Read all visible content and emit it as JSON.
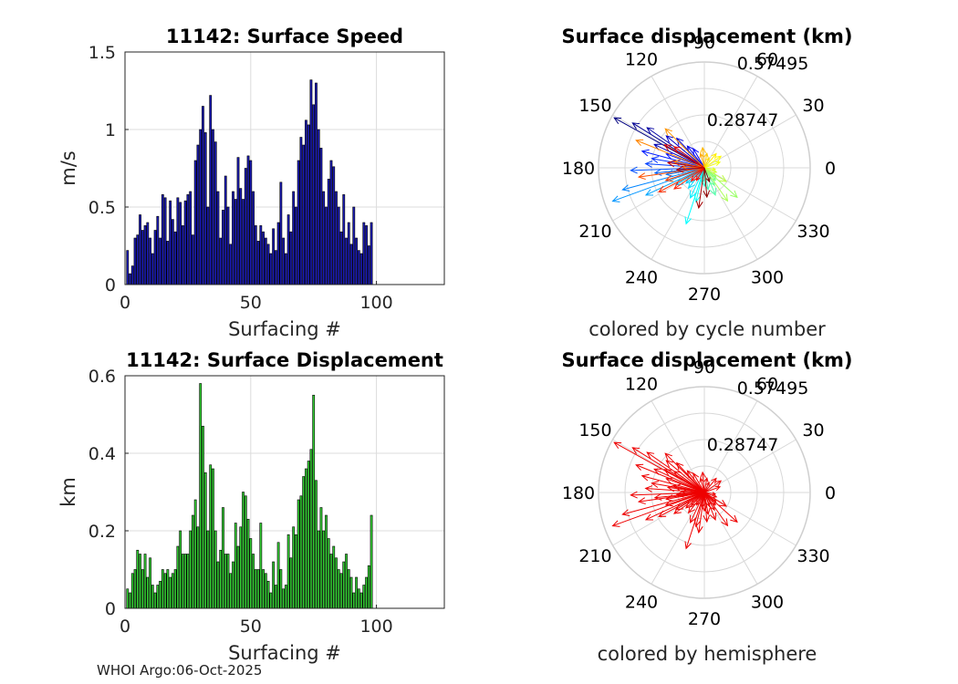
{
  "footer": "WHOI Argo:06-Oct-2025",
  "chart_data": [
    {
      "type": "bar",
      "title": "11142: Surface Speed",
      "xlabel": "Surfacing #",
      "ylabel": "m/s",
      "xlim": [
        0,
        127
      ],
      "ylim": [
        0,
        1.5
      ],
      "xticks": [
        "0",
        "50",
        "100"
      ],
      "yticks": [
        "0",
        "0.5",
        "1",
        "1.5"
      ],
      "bar_color": "#1a1ab4",
      "grid": true,
      "x": [
        1,
        2,
        3,
        4,
        5,
        6,
        7,
        8,
        9,
        10,
        11,
        12,
        13,
        14,
        15,
        16,
        17,
        18,
        19,
        20,
        21,
        22,
        23,
        24,
        25,
        26,
        27,
        28,
        29,
        30,
        31,
        32,
        33,
        34,
        35,
        36,
        37,
        38,
        39,
        40,
        41,
        42,
        43,
        44,
        45,
        46,
        47,
        48,
        49,
        50,
        51,
        52,
        53,
        54,
        55,
        56,
        57,
        58,
        59,
        60,
        61,
        62,
        63,
        64,
        65,
        66,
        67,
        68,
        69,
        70,
        71,
        72,
        73,
        74,
        75,
        76,
        77,
        78,
        79,
        80,
        81,
        82,
        83,
        84,
        85,
        86,
        87,
        88,
        89,
        90,
        91,
        92,
        93,
        94,
        95,
        96,
        97,
        98
      ],
      "values": [
        0.22,
        0.07,
        0.12,
        0.3,
        0.32,
        0.45,
        0.35,
        0.38,
        0.4,
        0.3,
        0.2,
        0.35,
        0.44,
        0.3,
        0.58,
        0.56,
        0.28,
        0.54,
        0.42,
        0.34,
        0.56,
        0.53,
        0.38,
        0.54,
        0.58,
        0.6,
        0.32,
        0.8,
        0.9,
        1.0,
        1.15,
        0.98,
        0.5,
        1.22,
        1.0,
        0.92,
        0.6,
        0.3,
        0.48,
        0.7,
        0.5,
        0.26,
        0.6,
        0.55,
        0.82,
        0.62,
        0.55,
        0.75,
        0.83,
        0.8,
        0.6,
        0.38,
        0.28,
        0.38,
        0.34,
        0.3,
        0.26,
        0.2,
        0.36,
        0.22,
        0.4,
        0.66,
        0.3,
        0.2,
        0.45,
        0.34,
        0.6,
        0.5,
        0.8,
        0.95,
        0.9,
        1.06,
        1.03,
        1.32,
        1.16,
        1.3,
        1.0,
        0.88,
        0.6,
        0.5,
        0.68,
        0.8,
        0.76,
        0.6,
        0.5,
        0.34,
        0.58,
        0.3,
        0.4,
        0.26,
        0.5,
        0.3,
        0.22,
        0.2,
        0.4,
        0.38,
        0.25,
        0.4
      ]
    },
    {
      "type": "bar",
      "title": "11142: Surface Displacement",
      "xlabel": "Surfacing #",
      "ylabel": "km",
      "xlim": [
        0,
        127
      ],
      "ylim": [
        0,
        0.6
      ],
      "xticks": [
        "0",
        "50",
        "100"
      ],
      "yticks": [
        "0",
        "0.2",
        "0.4",
        "0.6"
      ],
      "bar_color": "#33cc33",
      "grid": true,
      "x": [
        1,
        2,
        3,
        4,
        5,
        6,
        7,
        8,
        9,
        10,
        11,
        12,
        13,
        14,
        15,
        16,
        17,
        18,
        19,
        20,
        21,
        22,
        23,
        24,
        25,
        26,
        27,
        28,
        29,
        30,
        31,
        32,
        33,
        34,
        35,
        36,
        37,
        38,
        39,
        40,
        41,
        42,
        43,
        44,
        45,
        46,
        47,
        48,
        49,
        50,
        51,
        52,
        53,
        54,
        55,
        56,
        57,
        58,
        59,
        60,
        61,
        62,
        63,
        64,
        65,
        66,
        67,
        68,
        69,
        70,
        71,
        72,
        73,
        74,
        75,
        76,
        77,
        78,
        79,
        80,
        81,
        82,
        83,
        84,
        85,
        86,
        87,
        88,
        89,
        90,
        91,
        92,
        93,
        94,
        95,
        96,
        97,
        98
      ],
      "values": [
        0.05,
        0.04,
        0.09,
        0.1,
        0.15,
        0.14,
        0.1,
        0.14,
        0.08,
        0.13,
        0.06,
        0.04,
        0.06,
        0.07,
        0.1,
        0.09,
        0.1,
        0.08,
        0.09,
        0.1,
        0.16,
        0.2,
        0.14,
        0.14,
        0.14,
        0.2,
        0.24,
        0.28,
        0.21,
        0.58,
        0.47,
        0.35,
        0.2,
        0.37,
        0.36,
        0.2,
        0.12,
        0.15,
        0.26,
        0.14,
        0.14,
        0.09,
        0.12,
        0.22,
        0.16,
        0.21,
        0.3,
        0.29,
        0.23,
        0.18,
        0.14,
        0.1,
        0.1,
        0.22,
        0.1,
        0.09,
        0.07,
        0.04,
        0.12,
        0.06,
        0.17,
        0.1,
        0.05,
        0.06,
        0.19,
        0.13,
        0.21,
        0.19,
        0.28,
        0.29,
        0.34,
        0.36,
        0.38,
        0.41,
        0.55,
        0.33,
        0.2,
        0.26,
        0.2,
        0.24,
        0.18,
        0.14,
        0.16,
        0.13,
        0.1,
        0.09,
        0.12,
        0.14,
        0.1,
        0.08,
        0.04,
        0.08,
        0.05,
        0.04,
        0.06,
        0.08,
        0.11,
        0.24
      ]
    },
    {
      "type": "polar-compass",
      "title": "Surface displacement (km)",
      "caption": "colored by cycle number",
      "rmax": 0.57495,
      "r_ticks": [
        "0.28747",
        "0.57495"
      ],
      "angle_ticks": [
        "90",
        "60",
        "30",
        "0",
        "330",
        "300",
        "270",
        "240",
        "210",
        "180",
        "150",
        "120"
      ],
      "color_mode": "cycle",
      "colormap": "jet",
      "vectors": [
        {
          "angle": 151,
          "r": 0.56
        },
        {
          "angle": 148,
          "r": 0.46
        },
        {
          "angle": 145,
          "r": 0.38
        },
        {
          "angle": 155,
          "r": 0.3
        },
        {
          "angle": 140,
          "r": 0.27
        },
        {
          "angle": 133,
          "r": 0.22
        },
        {
          "angle": 128,
          "r": 0.15
        },
        {
          "angle": 120,
          "r": 0.12
        },
        {
          "angle": 160,
          "r": 0.22
        },
        {
          "angle": 165,
          "r": 0.35
        },
        {
          "angle": 170,
          "r": 0.29
        },
        {
          "angle": 176,
          "r": 0.32
        },
        {
          "angle": 182,
          "r": 0.4
        },
        {
          "angle": 186,
          "r": 0.27
        },
        {
          "angle": 190,
          "r": 0.21
        },
        {
          "angle": 195,
          "r": 0.46
        },
        {
          "angle": 200,
          "r": 0.53
        },
        {
          "angle": 205,
          "r": 0.35
        },
        {
          "angle": 211,
          "r": 0.18
        },
        {
          "angle": 220,
          "r": 0.13
        },
        {
          "angle": 232,
          "r": 0.14
        },
        {
          "angle": 245,
          "r": 0.18
        },
        {
          "angle": 252,
          "r": 0.32
        },
        {
          "angle": 256,
          "r": 0.19
        },
        {
          "angle": 262,
          "r": 0.08
        },
        {
          "angle": 270,
          "r": 0.1
        },
        {
          "angle": 280,
          "r": 0.12
        },
        {
          "angle": 292,
          "r": 0.16
        },
        {
          "angle": 300,
          "r": 0.11
        },
        {
          "angle": 312,
          "r": 0.09
        },
        {
          "angle": 322,
          "r": 0.08
        },
        {
          "angle": 318,
          "r": 0.24
        },
        {
          "angle": 305,
          "r": 0.22
        },
        {
          "angle": 328,
          "r": 0.14
        },
        {
          "angle": 340,
          "r": 0.07
        },
        {
          "angle": 352,
          "r": 0.06
        },
        {
          "angle": 20,
          "r": 0.09
        },
        {
          "angle": 35,
          "r": 0.11
        },
        {
          "angle": 50,
          "r": 0.1
        },
        {
          "angle": 65,
          "r": 0.06
        },
        {
          "angle": 80,
          "r": 0.08
        },
        {
          "angle": 95,
          "r": 0.11
        },
        {
          "angle": 105,
          "r": 0.08
        },
        {
          "angle": 135,
          "r": 0.3
        },
        {
          "angle": 158,
          "r": 0.4
        },
        {
          "angle": 168,
          "r": 0.17
        },
        {
          "angle": 178,
          "r": 0.12
        },
        {
          "angle": 188,
          "r": 0.36
        },
        {
          "angle": 198,
          "r": 0.22
        },
        {
          "angle": 208,
          "r": 0.28
        },
        {
          "angle": 215,
          "r": 0.2
        },
        {
          "angle": 225,
          "r": 0.1
        },
        {
          "angle": 238,
          "r": 0.08
        },
        {
          "angle": 145,
          "r": 0.2
        },
        {
          "angle": 150,
          "r": 0.25
        },
        {
          "angle": 172,
          "r": 0.2
        },
        {
          "angle": 184,
          "r": 0.15
        },
        {
          "angle": 262,
          "r": 0.22
        },
        {
          "angle": 275,
          "r": 0.16
        },
        {
          "angle": 290,
          "r": 0.08
        }
      ]
    },
    {
      "type": "polar-compass",
      "title": "Surface displacement (km)",
      "caption": "colored by hemisphere",
      "rmax": 0.57495,
      "r_ticks": [
        "0.28747",
        "0.57495"
      ],
      "angle_ticks": [
        "90",
        "60",
        "30",
        "0",
        "330",
        "300",
        "270",
        "240",
        "210",
        "180",
        "150",
        "120"
      ],
      "color_mode": "single",
      "color": "#ee0000",
      "vectors": [
        {
          "angle": 151,
          "r": 0.56
        },
        {
          "angle": 148,
          "r": 0.46
        },
        {
          "angle": 145,
          "r": 0.38
        },
        {
          "angle": 155,
          "r": 0.3
        },
        {
          "angle": 140,
          "r": 0.27
        },
        {
          "angle": 133,
          "r": 0.22
        },
        {
          "angle": 128,
          "r": 0.15
        },
        {
          "angle": 120,
          "r": 0.12
        },
        {
          "angle": 160,
          "r": 0.22
        },
        {
          "angle": 165,
          "r": 0.35
        },
        {
          "angle": 170,
          "r": 0.29
        },
        {
          "angle": 176,
          "r": 0.32
        },
        {
          "angle": 182,
          "r": 0.4
        },
        {
          "angle": 186,
          "r": 0.27
        },
        {
          "angle": 190,
          "r": 0.21
        },
        {
          "angle": 195,
          "r": 0.46
        },
        {
          "angle": 200,
          "r": 0.53
        },
        {
          "angle": 205,
          "r": 0.35
        },
        {
          "angle": 211,
          "r": 0.18
        },
        {
          "angle": 220,
          "r": 0.13
        },
        {
          "angle": 232,
          "r": 0.14
        },
        {
          "angle": 245,
          "r": 0.18
        },
        {
          "angle": 252,
          "r": 0.32
        },
        {
          "angle": 256,
          "r": 0.19
        },
        {
          "angle": 262,
          "r": 0.08
        },
        {
          "angle": 270,
          "r": 0.1
        },
        {
          "angle": 280,
          "r": 0.12
        },
        {
          "angle": 292,
          "r": 0.16
        },
        {
          "angle": 300,
          "r": 0.11
        },
        {
          "angle": 312,
          "r": 0.09
        },
        {
          "angle": 322,
          "r": 0.08
        },
        {
          "angle": 318,
          "r": 0.24
        },
        {
          "angle": 305,
          "r": 0.22
        },
        {
          "angle": 328,
          "r": 0.14
        },
        {
          "angle": 340,
          "r": 0.07
        },
        {
          "angle": 352,
          "r": 0.06
        },
        {
          "angle": 20,
          "r": 0.09
        },
        {
          "angle": 35,
          "r": 0.11
        },
        {
          "angle": 50,
          "r": 0.1
        },
        {
          "angle": 65,
          "r": 0.06
        },
        {
          "angle": 80,
          "r": 0.08
        },
        {
          "angle": 95,
          "r": 0.11
        },
        {
          "angle": 105,
          "r": 0.08
        },
        {
          "angle": 135,
          "r": 0.3
        },
        {
          "angle": 158,
          "r": 0.4
        },
        {
          "angle": 168,
          "r": 0.17
        },
        {
          "angle": 178,
          "r": 0.12
        },
        {
          "angle": 188,
          "r": 0.36
        },
        {
          "angle": 198,
          "r": 0.22
        },
        {
          "angle": 208,
          "r": 0.28
        },
        {
          "angle": 215,
          "r": 0.2
        },
        {
          "angle": 225,
          "r": 0.1
        },
        {
          "angle": 238,
          "r": 0.08
        },
        {
          "angle": 145,
          "r": 0.2
        },
        {
          "angle": 150,
          "r": 0.25
        },
        {
          "angle": 172,
          "r": 0.2
        },
        {
          "angle": 184,
          "r": 0.15
        },
        {
          "angle": 262,
          "r": 0.22
        },
        {
          "angle": 275,
          "r": 0.16
        },
        {
          "angle": 290,
          "r": 0.08
        }
      ]
    }
  ]
}
